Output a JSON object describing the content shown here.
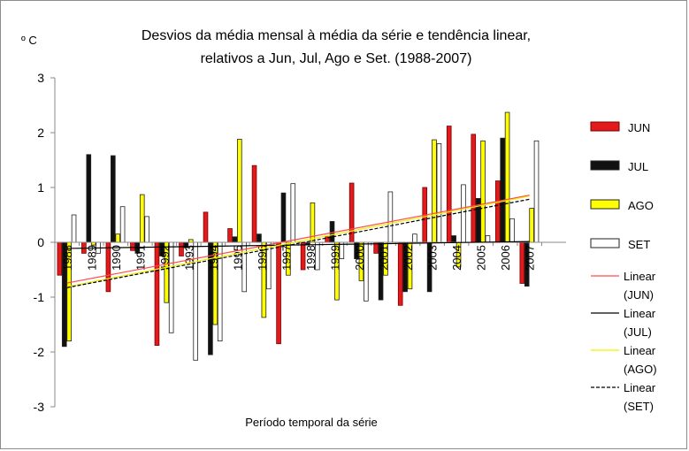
{
  "chart_data": {
    "type": "bar",
    "title": [
      "Desvios da média mensal à média da série e tendência linear,",
      "relativos a Jun, Jul, Ago e Set. (1988-2007)"
    ],
    "y_unit": "º C",
    "x_label": "Período temporal da série",
    "categories": [
      "1988",
      "1989",
      "1990",
      "1991",
      "1992",
      "1993",
      "1994",
      "1995",
      "1996",
      "1997",
      "1998",
      "1999",
      "2000",
      "2001",
      "2002",
      "2003",
      "2004",
      "2005",
      "2006",
      "2007",
      null
    ],
    "series": [
      {
        "name": "JUN",
        "color": "#e31a1c",
        "trend_color": "#ff4a4a",
        "trend_label": "Linear (JUN)",
        "values": [
          -0.6,
          -0.2,
          -0.9,
          -0.15,
          -1.88,
          -0.25,
          0.55,
          0.25,
          1.4,
          -1.85,
          -0.5,
          0.1,
          1.08,
          -0.2,
          -1.15,
          1.0,
          2.12,
          1.97,
          1.12,
          -0.75,
          null
        ]
      },
      {
        "name": "JUL",
        "color": "#111111",
        "trend_color": "#000000",
        "trend_label": "Linear (JUL)",
        "values": [
          -1.9,
          1.6,
          1.58,
          -0.2,
          -0.25,
          -0.1,
          -2.05,
          0.1,
          0.15,
          0.9,
          -0.05,
          0.38,
          -0.3,
          -1.05,
          -0.9,
          -0.9,
          0.12,
          0.8,
          1.9,
          -0.8,
          null
        ]
      },
      {
        "name": "AGO",
        "color": "#ffff00",
        "trend_color": "#f2f200",
        "trend_label": "Linear (AGO)",
        "values": [
          -1.8,
          -0.05,
          0.15,
          0.87,
          -1.1,
          0.05,
          -1.5,
          1.88,
          -1.37,
          -0.6,
          0.72,
          -1.05,
          -0.7,
          -0.6,
          -0.85,
          1.87,
          -0.45,
          1.85,
          2.37,
          0.62,
          null
        ]
      },
      {
        "name": "SET",
        "color": "#ffffff",
        "trend_color": "#000000",
        "trend_dash": true,
        "trend_label": "Linear (SET)",
        "values": [
          0.5,
          -0.2,
          0.65,
          0.47,
          -1.65,
          -2.15,
          -1.8,
          -0.9,
          -0.85,
          1.07,
          -0.5,
          -0.3,
          -1.07,
          0.92,
          0.15,
          1.8,
          1.05,
          0.12,
          0.43,
          1.85,
          null
        ]
      }
    ],
    "ylim": [
      -3,
      3
    ],
    "yticks": [
      -3,
      -2,
      -1,
      0,
      1,
      2,
      3
    ],
    "grid": false
  }
}
